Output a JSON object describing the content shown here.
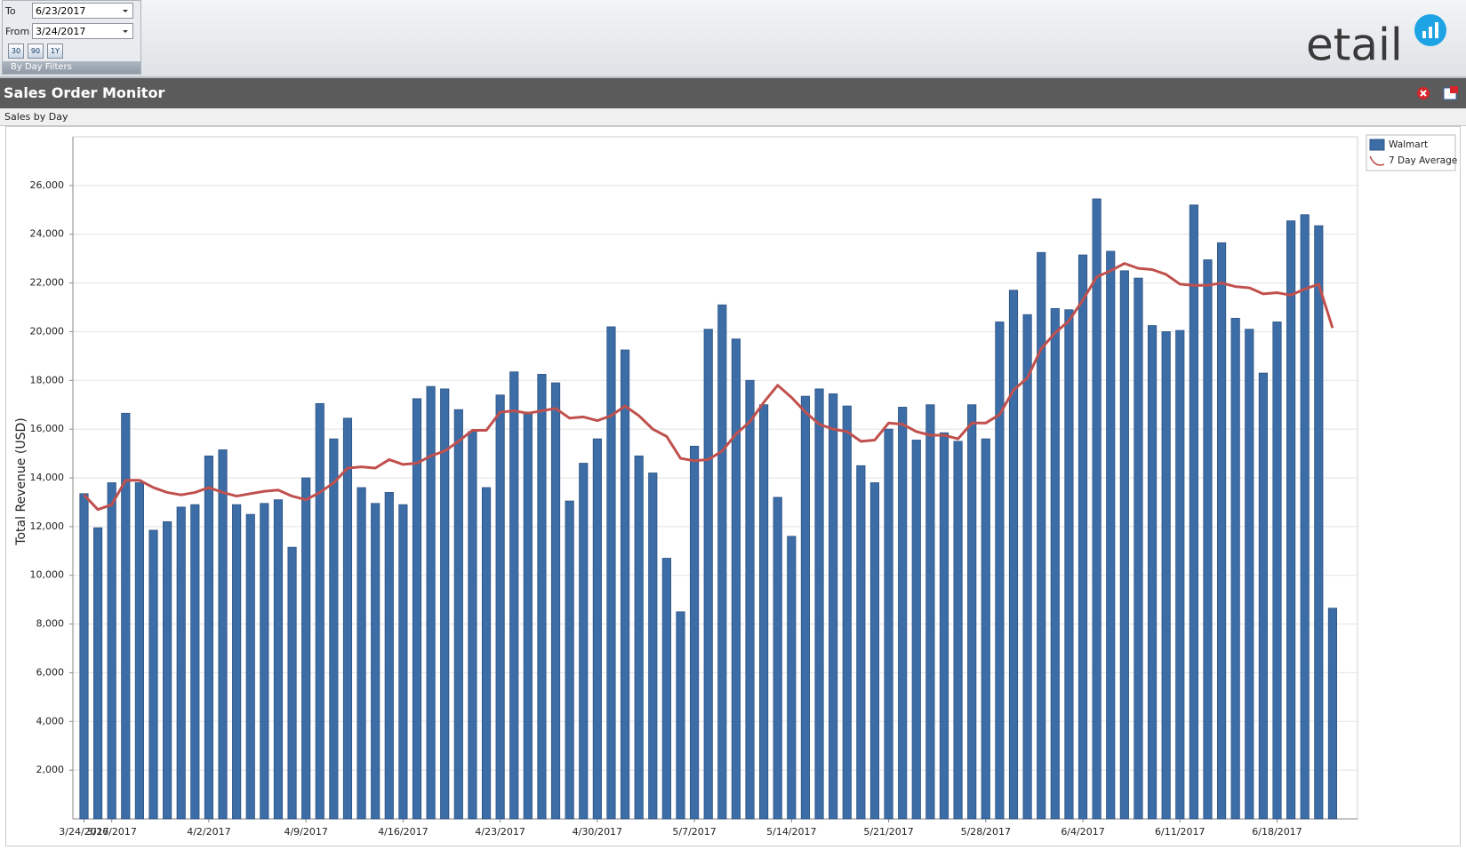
{
  "toolbar": {
    "to_label": "To",
    "to_date": "6/23/2017",
    "from_label": "From",
    "from_date": "3/24/2017",
    "buttons": [
      "30",
      "90",
      "1Y"
    ],
    "caption": "By Day Filters",
    "logo": "etail"
  },
  "header": {
    "title": "Sales Order Monitor",
    "subtitle": "Sales by Day"
  },
  "chart_data": {
    "type": "bar",
    "y_label": "Total Revenue (USD)",
    "categories": [
      "3/24/2017",
      null,
      "3/26/2017",
      null,
      null,
      null,
      null,
      null,
      null,
      "4/2/2017",
      null,
      null,
      null,
      null,
      null,
      null,
      "4/9/2017",
      null,
      null,
      null,
      null,
      null,
      null,
      "4/16/2017",
      null,
      null,
      null,
      null,
      null,
      null,
      "4/23/2017",
      null,
      null,
      null,
      null,
      null,
      null,
      "4/30/2017",
      null,
      null,
      null,
      null,
      null,
      null,
      "5/7/2017",
      null,
      null,
      null,
      null,
      null,
      null,
      "5/14/2017",
      null,
      null,
      null,
      null,
      null,
      null,
      "5/21/2017",
      null,
      null,
      null,
      null,
      null,
      null,
      "5/28/2017",
      null,
      null,
      null,
      null,
      null,
      null,
      "6/4/2017",
      null,
      null,
      null,
      null,
      null,
      null,
      "6/11/2017",
      null,
      null,
      null,
      null,
      null,
      null,
      "6/18/2017",
      null,
      null,
      null,
      null
    ],
    "series": [
      {
        "name": "Walmart",
        "type": "bar",
        "color": "#3d6da6",
        "values": [
          13350,
          11950,
          13800,
          16650,
          13800,
          11850,
          12200,
          12800,
          12900,
          14900,
          15150,
          12900,
          12500,
          12950,
          13100,
          11150,
          14000,
          17050,
          15600,
          16450,
          13600,
          12950,
          13400,
          12900,
          17250,
          17750,
          17650,
          16800,
          15900,
          13600,
          17400,
          18350,
          16700,
          18250,
          17900,
          13050,
          14600,
          15600,
          20200,
          19250,
          14900,
          14200,
          10700,
          8500,
          15300,
          20100,
          21100,
          19700,
          18000,
          17000,
          13200,
          11600,
          17350,
          17650,
          17450,
          16950,
          14500,
          13800,
          16000,
          16900,
          15550,
          17000,
          15850,
          15500,
          17000,
          15600,
          20400,
          21700,
          20700,
          23250,
          20950,
          20900,
          23150,
          25450,
          23300,
          22500,
          22200,
          20250,
          20000,
          20050,
          25200,
          22950,
          23650,
          20550,
          20100,
          18300,
          20400,
          24550,
          24800,
          24350,
          8650
        ]
      },
      {
        "name": "7 Day Average",
        "type": "line",
        "color": "#c0504d",
        "values": [
          13300,
          12700,
          12900,
          13900,
          13900,
          13600,
          13400,
          13300,
          13400,
          13600,
          13400,
          13250,
          13350,
          13450,
          13500,
          13250,
          13100,
          13400,
          13800,
          14400,
          14450,
          14400,
          14750,
          14550,
          14600,
          14900,
          15100,
          15500,
          15950,
          15950,
          16700,
          16750,
          16650,
          16750,
          16850,
          16450,
          16500,
          16350,
          16550,
          16950,
          16550,
          16000,
          15700,
          14800,
          14700,
          14750,
          15100,
          15800,
          16300,
          17100,
          17800,
          17300,
          16700,
          16200,
          16000,
          15900,
          15500,
          15550,
          16250,
          16200,
          15900,
          15750,
          15750,
          15600,
          16250,
          16250,
          16600,
          17600,
          18100,
          19300,
          19950,
          20450,
          21300,
          22250,
          22500,
          22800,
          22600,
          22550,
          22350,
          21950,
          21900,
          21900,
          22000,
          21850,
          21800,
          21550,
          21600,
          21500,
          21750,
          21950,
          20150
        ]
      }
    ],
    "ylim": [
      0,
      28000
    ],
    "yticks": [
      {
        "value": 2000,
        "label": "2,000"
      },
      {
        "value": 4000,
        "label": "4,000"
      },
      {
        "value": 6000,
        "label": "6,000"
      },
      {
        "value": 8000,
        "label": "8,000"
      },
      {
        "value": 10000,
        "label": "10,000"
      },
      {
        "value": 12000,
        "label": "12,000"
      },
      {
        "value": 14000,
        "label": "14,000"
      },
      {
        "value": 16000,
        "label": "16,000"
      },
      {
        "value": 18000,
        "label": "18,000"
      },
      {
        "value": 20000,
        "label": "20,000"
      },
      {
        "value": 22000,
        "label": "22,000"
      },
      {
        "value": 24000,
        "label": "24,000"
      },
      {
        "value": 26000,
        "label": "26,000"
      }
    ],
    "grid": true,
    "legend": "right"
  }
}
